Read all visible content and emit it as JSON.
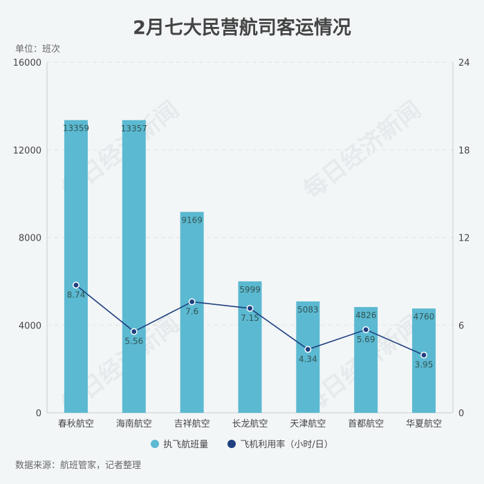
{
  "title": "2月七大民营航司客运情况",
  "unit_label": "单位：班次",
  "source": "数据来源：航班管家，记者整理",
  "watermark": "每日经济新闻",
  "colors": {
    "bar": "#5bb9d1",
    "line": "#1f3f7f",
    "grid": "#dde3e6",
    "axis": "#c5ccd0"
  },
  "chart_data": {
    "type": "bar+line",
    "categories": [
      "春秋航空",
      "海南航空",
      "吉祥航空",
      "长龙航空",
      "天津航空",
      "首都航空",
      "华夏航空"
    ],
    "series": [
      {
        "name": "执飞航班量",
        "type": "bar",
        "axis": "left",
        "values": [
          13359,
          13357,
          9169,
          5999,
          5083,
          4826,
          4760
        ]
      },
      {
        "name": "飞机利用率（小时/日）",
        "type": "line",
        "axis": "right",
        "values": [
          8.74,
          5.56,
          7.6,
          7.15,
          4.34,
          5.69,
          3.95
        ]
      }
    ],
    "y_left": {
      "min": 0,
      "max": 16000,
      "ticks": [
        0,
        4000,
        8000,
        12000,
        16000
      ]
    },
    "y_right": {
      "min": 0,
      "max": 24,
      "ticks": [
        0,
        6,
        12,
        18,
        24
      ]
    },
    "grid": true,
    "legend_position": "bottom"
  }
}
